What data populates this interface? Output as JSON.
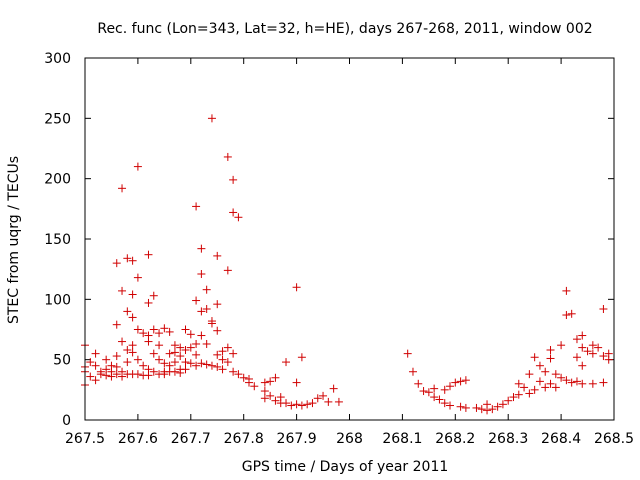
{
  "chart_data": {
    "type": "scatter",
    "title": "Rec. func (Lon=343, Lat=32, h=HE), days 267-268, 2011, window 002",
    "xlabel": "GPS time / Days of year 2011",
    "ylabel": "STEC from uqrg / TECUs",
    "xlim": [
      267.5,
      268.5
    ],
    "ylim": [
      0,
      300
    ],
    "xticks": [
      {
        "value": 267.5,
        "label": "267.5"
      },
      {
        "value": 267.6,
        "label": "267.6"
      },
      {
        "value": 267.7,
        "label": "267.7"
      },
      {
        "value": 267.8,
        "label": "267.8"
      },
      {
        "value": 267.9,
        "label": "267.9"
      },
      {
        "value": 268.0,
        "label": "268"
      },
      {
        "value": 268.1,
        "label": "268.1"
      },
      {
        "value": 268.2,
        "label": "268.2"
      },
      {
        "value": 268.3,
        "label": "268.3"
      },
      {
        "value": 268.4,
        "label": "268.4"
      },
      {
        "value": 268.5,
        "label": "268.5"
      }
    ],
    "yticks": [
      {
        "value": 0,
        "label": "0"
      },
      {
        "value": 50,
        "label": "50"
      },
      {
        "value": 100,
        "label": "100"
      },
      {
        "value": 150,
        "label": "150"
      },
      {
        "value": 200,
        "label": "200"
      },
      {
        "value": 250,
        "label": "250"
      },
      {
        "value": 300,
        "label": "300"
      }
    ],
    "grid": false,
    "marker": "+",
    "color": "#d00000",
    "series": [
      {
        "name": "STEC",
        "points": [
          [
            267.5,
            62
          ],
          [
            267.5,
            29
          ],
          [
            267.5,
            44
          ],
          [
            267.5,
            40
          ],
          [
            267.51,
            48
          ],
          [
            267.51,
            36
          ],
          [
            267.52,
            55
          ],
          [
            267.52,
            33
          ],
          [
            267.52,
            45
          ],
          [
            267.53,
            40
          ],
          [
            267.53,
            38
          ],
          [
            267.54,
            50
          ],
          [
            267.54,
            42
          ],
          [
            267.54,
            37
          ],
          [
            267.55,
            45
          ],
          [
            267.55,
            40
          ],
          [
            267.55,
            36
          ],
          [
            267.56,
            79
          ],
          [
            267.56,
            130
          ],
          [
            267.56,
            53
          ],
          [
            267.56,
            38
          ],
          [
            267.56,
            44
          ],
          [
            267.57,
            192
          ],
          [
            267.57,
            107
          ],
          [
            267.57,
            65
          ],
          [
            267.57,
            40
          ],
          [
            267.57,
            36
          ],
          [
            267.58,
            134
          ],
          [
            267.58,
            90
          ],
          [
            267.58,
            58
          ],
          [
            267.58,
            38
          ],
          [
            267.58,
            48
          ],
          [
            267.59,
            132
          ],
          [
            267.59,
            104
          ],
          [
            267.59,
            85
          ],
          [
            267.59,
            62
          ],
          [
            267.59,
            56
          ],
          [
            267.59,
            38
          ],
          [
            267.6,
            210
          ],
          [
            267.6,
            118
          ],
          [
            267.6,
            75
          ],
          [
            267.6,
            50
          ],
          [
            267.6,
            38
          ],
          [
            267.61,
            72
          ],
          [
            267.61,
            45
          ],
          [
            267.61,
            37
          ],
          [
            267.62,
            137
          ],
          [
            267.62,
            97
          ],
          [
            267.62,
            70
          ],
          [
            267.62,
            65
          ],
          [
            267.62,
            42
          ],
          [
            267.62,
            37
          ],
          [
            267.63,
            103
          ],
          [
            267.63,
            75
          ],
          [
            267.63,
            55
          ],
          [
            267.63,
            40
          ],
          [
            267.64,
            72
          ],
          [
            267.64,
            62
          ],
          [
            267.64,
            50
          ],
          [
            267.64,
            38
          ],
          [
            267.65,
            76
          ],
          [
            267.65,
            47
          ],
          [
            267.65,
            40
          ],
          [
            267.65,
            38
          ],
          [
            267.66,
            73
          ],
          [
            267.66,
            55
          ],
          [
            267.66,
            45
          ],
          [
            267.66,
            40
          ],
          [
            267.67,
            62
          ],
          [
            267.67,
            56
          ],
          [
            267.67,
            48
          ],
          [
            267.67,
            40
          ],
          [
            267.68,
            60
          ],
          [
            267.68,
            53
          ],
          [
            267.68,
            42
          ],
          [
            267.68,
            39
          ],
          [
            267.69,
            75
          ],
          [
            267.69,
            58
          ],
          [
            267.69,
            48
          ],
          [
            267.69,
            42
          ],
          [
            267.7,
            71
          ],
          [
            267.7,
            60
          ],
          [
            267.7,
            47
          ],
          [
            267.71,
            177
          ],
          [
            267.71,
            99
          ],
          [
            267.71,
            63
          ],
          [
            267.71,
            54
          ],
          [
            267.71,
            45
          ],
          [
            267.72,
            142
          ],
          [
            267.72,
            121
          ],
          [
            267.72,
            90
          ],
          [
            267.72,
            70
          ],
          [
            267.72,
            47
          ],
          [
            267.73,
            108
          ],
          [
            267.73,
            92
          ],
          [
            267.73,
            63
          ],
          [
            267.73,
            46
          ],
          [
            267.74,
            250
          ],
          [
            267.74,
            82
          ],
          [
            267.74,
            80
          ],
          [
            267.74,
            45
          ],
          [
            267.75,
            136
          ],
          [
            267.75,
            96
          ],
          [
            267.75,
            74
          ],
          [
            267.75,
            54
          ],
          [
            267.75,
            44
          ],
          [
            267.76,
            57
          ],
          [
            267.76,
            50
          ],
          [
            267.76,
            42
          ],
          [
            267.77,
            218
          ],
          [
            267.77,
            124
          ],
          [
            267.77,
            60
          ],
          [
            267.77,
            48
          ],
          [
            267.78,
            199
          ],
          [
            267.78,
            172
          ],
          [
            267.78,
            55
          ],
          [
            267.78,
            40
          ],
          [
            267.79,
            168
          ],
          [
            267.79,
            38
          ],
          [
            267.8,
            35
          ],
          [
            267.81,
            34
          ],
          [
            267.81,
            31
          ],
          [
            267.82,
            28
          ],
          [
            267.84,
            31
          ],
          [
            267.84,
            24
          ],
          [
            267.84,
            18
          ],
          [
            267.85,
            32
          ],
          [
            267.85,
            20
          ],
          [
            267.86,
            35
          ],
          [
            267.86,
            16
          ],
          [
            267.87,
            19
          ],
          [
            267.87,
            14
          ],
          [
            267.88,
            48
          ],
          [
            267.88,
            14
          ],
          [
            267.89,
            12
          ],
          [
            267.9,
            110
          ],
          [
            267.9,
            31
          ],
          [
            267.9,
            13
          ],
          [
            267.91,
            52
          ],
          [
            267.91,
            12
          ],
          [
            267.92,
            13
          ],
          [
            267.93,
            14
          ],
          [
            267.94,
            18
          ],
          [
            267.95,
            20
          ],
          [
            267.96,
            15
          ],
          [
            267.97,
            26
          ],
          [
            267.98,
            15
          ],
          [
            268.11,
            55
          ],
          [
            268.12,
            40
          ],
          [
            268.13,
            30
          ],
          [
            268.14,
            24
          ],
          [
            268.15,
            23
          ],
          [
            268.16,
            26
          ],
          [
            268.16,
            19
          ],
          [
            268.17,
            17
          ],
          [
            268.18,
            25
          ],
          [
            268.18,
            14
          ],
          [
            268.19,
            28
          ],
          [
            268.19,
            12
          ],
          [
            268.2,
            31
          ],
          [
            268.21,
            32
          ],
          [
            268.21,
            11
          ],
          [
            268.22,
            33
          ],
          [
            268.22,
            10
          ],
          [
            268.24,
            10
          ],
          [
            268.25,
            9
          ],
          [
            268.26,
            8
          ],
          [
            268.26,
            13
          ],
          [
            268.27,
            9
          ],
          [
            268.28,
            11
          ],
          [
            268.29,
            13
          ],
          [
            268.3,
            16
          ],
          [
            268.31,
            19
          ],
          [
            268.32,
            21
          ],
          [
            268.32,
            30
          ],
          [
            268.33,
            27
          ],
          [
            268.34,
            38
          ],
          [
            268.34,
            22
          ],
          [
            268.35,
            25
          ],
          [
            268.35,
            52
          ],
          [
            268.36,
            32
          ],
          [
            268.36,
            45
          ],
          [
            268.37,
            40
          ],
          [
            268.37,
            27
          ],
          [
            268.38,
            58
          ],
          [
            268.38,
            51
          ],
          [
            268.38,
            30
          ],
          [
            268.39,
            38
          ],
          [
            268.39,
            27
          ],
          [
            268.4,
            62
          ],
          [
            268.4,
            35
          ],
          [
            268.41,
            107
          ],
          [
            268.41,
            87
          ],
          [
            268.41,
            33
          ],
          [
            268.42,
            88
          ],
          [
            268.42,
            31
          ],
          [
            268.43,
            67
          ],
          [
            268.43,
            52
          ],
          [
            268.43,
            32
          ],
          [
            268.44,
            70
          ],
          [
            268.44,
            60
          ],
          [
            268.44,
            45
          ],
          [
            268.44,
            30
          ],
          [
            268.45,
            57
          ],
          [
            268.46,
            62
          ],
          [
            268.46,
            55
          ],
          [
            268.46,
            30
          ],
          [
            268.47,
            60
          ],
          [
            268.48,
            92
          ],
          [
            268.48,
            53
          ],
          [
            268.48,
            31
          ],
          [
            268.49,
            55
          ],
          [
            268.49,
            50
          ]
        ]
      }
    ]
  }
}
